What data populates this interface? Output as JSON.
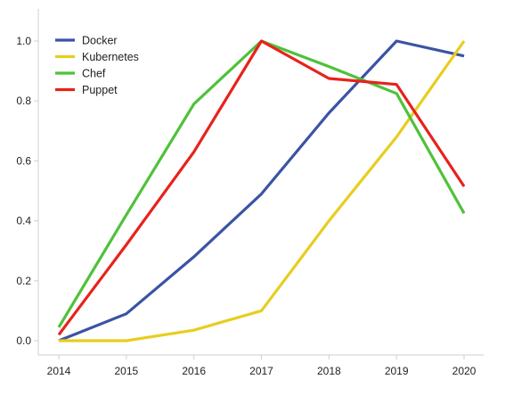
{
  "chart_data": {
    "type": "line",
    "x": [
      "2014",
      "2015",
      "2016",
      "2017",
      "2018",
      "2019",
      "2020"
    ],
    "ylim": [
      0,
      1.0
    ],
    "yticks": [
      "0.0",
      "0.2",
      "0.4",
      "0.6",
      "0.8",
      "1.0"
    ],
    "ytick_values": [
      0,
      0.2,
      0.4,
      0.6,
      0.8,
      1.0
    ],
    "grid": false,
    "legend_position": "top-left",
    "series": [
      {
        "name": "Docker",
        "color": "#3b53a4",
        "values": [
          0.0,
          0.09,
          0.28,
          0.49,
          0.76,
          1.0,
          0.95
        ]
      },
      {
        "name": "Kubernetes",
        "color": "#e8cd1f",
        "values": [
          0.0,
          0.0,
          0.035,
          0.1,
          0.4,
          0.68,
          1.0
        ]
      },
      {
        "name": "Chef",
        "color": "#4ec23a",
        "values": [
          0.045,
          0.42,
          0.79,
          1.0,
          0.915,
          0.825,
          0.425
        ]
      },
      {
        "name": "Puppet",
        "color": "#e8221c",
        "values": [
          0.02,
          0.32,
          0.63,
          1.0,
          0.875,
          0.855,
          0.515
        ]
      }
    ]
  }
}
